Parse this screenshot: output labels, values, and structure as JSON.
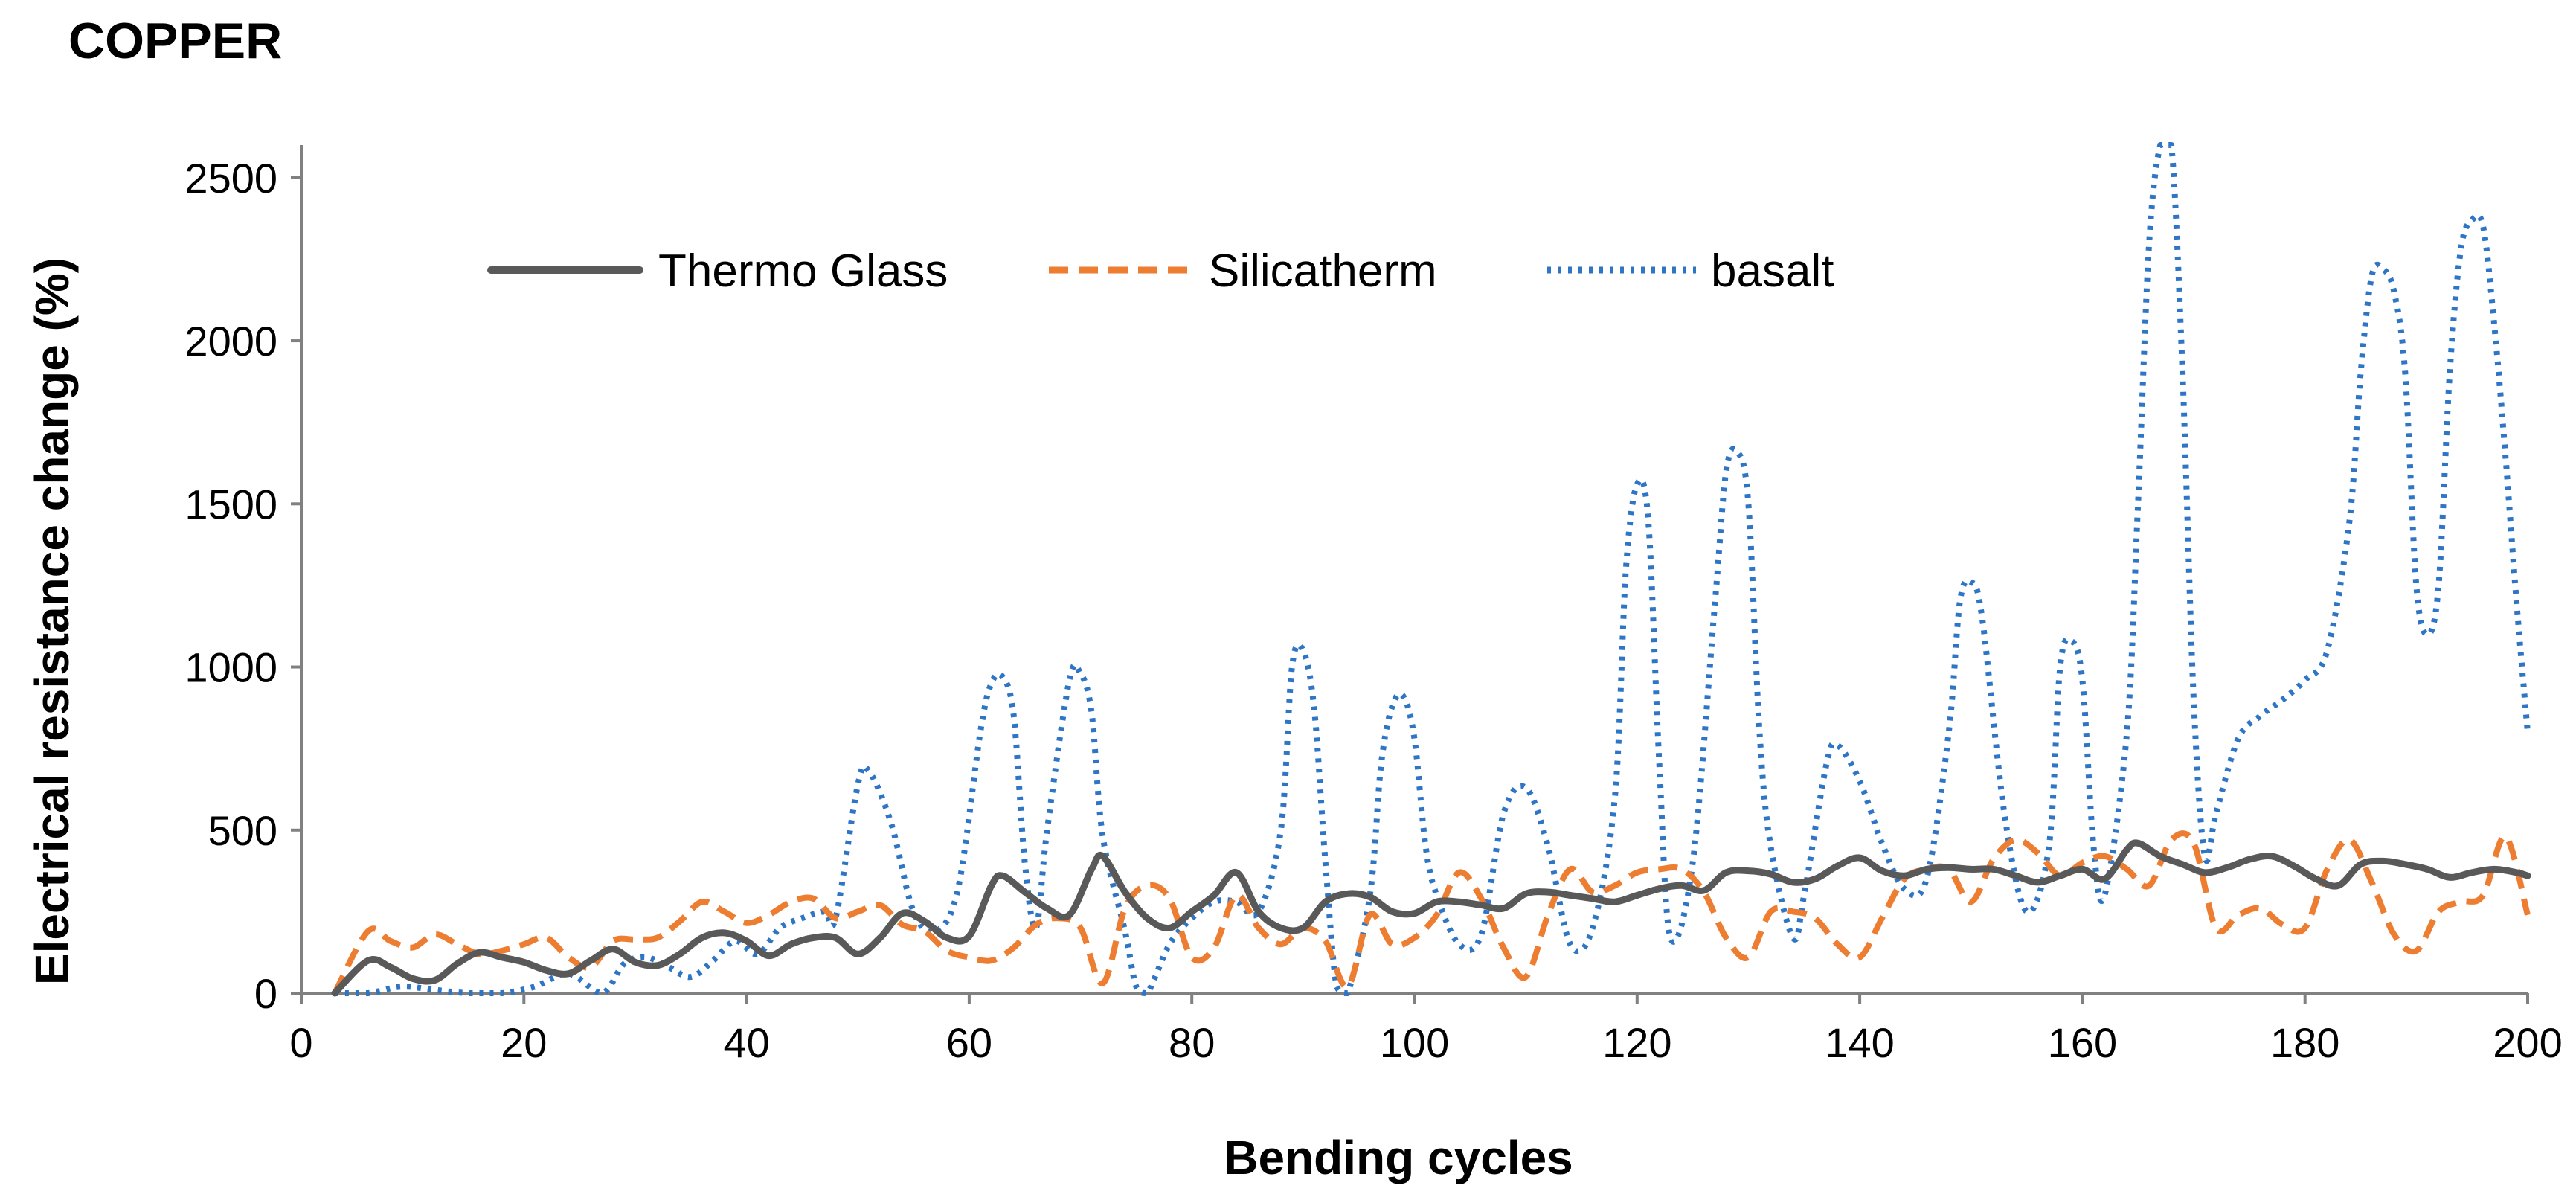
{
  "chart_data": {
    "type": "line",
    "title": "COPPER",
    "xlabel": "Bending cycles",
    "ylabel": "Electrical resistance change  (%)",
    "xlim": [
      0,
      200
    ],
    "ylim": [
      0,
      2600
    ],
    "xticks": [
      0,
      20,
      40,
      60,
      80,
      100,
      120,
      140,
      160,
      180,
      200
    ],
    "yticks": [
      0,
      500,
      1000,
      1500,
      2000,
      2500
    ],
    "grid": false,
    "legend_position": "top-center",
    "series": [
      {
        "name": "Thermo Glass",
        "color": "#595959",
        "style": "solid",
        "points": [
          [
            3,
            0
          ],
          [
            6,
            100
          ],
          [
            8,
            80
          ],
          [
            10,
            45
          ],
          [
            12,
            40
          ],
          [
            14,
            90
          ],
          [
            16,
            125
          ],
          [
            18,
            110
          ],
          [
            20,
            95
          ],
          [
            22,
            70
          ],
          [
            24,
            60
          ],
          [
            26,
            100
          ],
          [
            28,
            135
          ],
          [
            30,
            95
          ],
          [
            32,
            85
          ],
          [
            34,
            120
          ],
          [
            36,
            170
          ],
          [
            38,
            185
          ],
          [
            40,
            160
          ],
          [
            42,
            115
          ],
          [
            44,
            150
          ],
          [
            46,
            170
          ],
          [
            48,
            170
          ],
          [
            50,
            120
          ],
          [
            52,
            170
          ],
          [
            54,
            245
          ],
          [
            56,
            220
          ],
          [
            58,
            170
          ],
          [
            60,
            175
          ],
          [
            62,
            330
          ],
          [
            63,
            360
          ],
          [
            65,
            310
          ],
          [
            67,
            260
          ],
          [
            69,
            240
          ],
          [
            71,
            380
          ],
          [
            72,
            420
          ],
          [
            74,
            310
          ],
          [
            76,
            230
          ],
          [
            78,
            200
          ],
          [
            80,
            250
          ],
          [
            82,
            300
          ],
          [
            84,
            370
          ],
          [
            86,
            250
          ],
          [
            88,
            200
          ],
          [
            90,
            200
          ],
          [
            92,
            280
          ],
          [
            94,
            305
          ],
          [
            96,
            295
          ],
          [
            98,
            250
          ],
          [
            100,
            245
          ],
          [
            102,
            280
          ],
          [
            104,
            280
          ],
          [
            106,
            270
          ],
          [
            108,
            260
          ],
          [
            110,
            305
          ],
          [
            112,
            310
          ],
          [
            114,
            300
          ],
          [
            116,
            290
          ],
          [
            118,
            280
          ],
          [
            120,
            300
          ],
          [
            122,
            320
          ],
          [
            124,
            330
          ],
          [
            126,
            315
          ],
          [
            128,
            370
          ],
          [
            130,
            375
          ],
          [
            132,
            365
          ],
          [
            134,
            340
          ],
          [
            136,
            350
          ],
          [
            138,
            390
          ],
          [
            140,
            415
          ],
          [
            142,
            375
          ],
          [
            144,
            360
          ],
          [
            146,
            380
          ],
          [
            148,
            385
          ],
          [
            150,
            380
          ],
          [
            152,
            380
          ],
          [
            154,
            360
          ],
          [
            156,
            340
          ],
          [
            158,
            360
          ],
          [
            160,
            380
          ],
          [
            162,
            350
          ],
          [
            164,
            440
          ],
          [
            165,
            460
          ],
          [
            167,
            420
          ],
          [
            169,
            395
          ],
          [
            171,
            370
          ],
          [
            173,
            385
          ],
          [
            175,
            410
          ],
          [
            177,
            420
          ],
          [
            179,
            390
          ],
          [
            181,
            350
          ],
          [
            183,
            330
          ],
          [
            185,
            395
          ],
          [
            187,
            405
          ],
          [
            189,
            395
          ],
          [
            191,
            380
          ],
          [
            193,
            355
          ],
          [
            195,
            370
          ],
          [
            197,
            380
          ],
          [
            199,
            370
          ],
          [
            200,
            360
          ]
        ]
      },
      {
        "name": "Silicatherm",
        "color": "#ED7D31",
        "style": "dashed",
        "points": [
          [
            3,
            0
          ],
          [
            6,
            190
          ],
          [
            8,
            160
          ],
          [
            10,
            140
          ],
          [
            12,
            180
          ],
          [
            14,
            150
          ],
          [
            16,
            120
          ],
          [
            18,
            130
          ],
          [
            20,
            150
          ],
          [
            22,
            170
          ],
          [
            24,
            110
          ],
          [
            26,
            80
          ],
          [
            28,
            160
          ],
          [
            30,
            165
          ],
          [
            32,
            170
          ],
          [
            34,
            220
          ],
          [
            36,
            280
          ],
          [
            38,
            250
          ],
          [
            40,
            215
          ],
          [
            42,
            240
          ],
          [
            44,
            280
          ],
          [
            46,
            290
          ],
          [
            48,
            230
          ],
          [
            50,
            250
          ],
          [
            52,
            270
          ],
          [
            54,
            210
          ],
          [
            56,
            190
          ],
          [
            58,
            130
          ],
          [
            60,
            110
          ],
          [
            62,
            100
          ],
          [
            64,
            140
          ],
          [
            66,
            210
          ],
          [
            68,
            230
          ],
          [
            70,
            200
          ],
          [
            72,
            30
          ],
          [
            74,
            260
          ],
          [
            76,
            330
          ],
          [
            78,
            290
          ],
          [
            80,
            110
          ],
          [
            82,
            140
          ],
          [
            84,
            300
          ],
          [
            86,
            200
          ],
          [
            88,
            150
          ],
          [
            90,
            200
          ],
          [
            92,
            160
          ],
          [
            94,
            20
          ],
          [
            96,
            240
          ],
          [
            98,
            150
          ],
          [
            100,
            170
          ],
          [
            102,
            240
          ],
          [
            104,
            370
          ],
          [
            106,
            290
          ],
          [
            108,
            140
          ],
          [
            110,
            50
          ],
          [
            112,
            240
          ],
          [
            114,
            380
          ],
          [
            116,
            310
          ],
          [
            118,
            330
          ],
          [
            120,
            370
          ],
          [
            122,
            380
          ],
          [
            124,
            380
          ],
          [
            126,
            310
          ],
          [
            128,
            170
          ],
          [
            130,
            110
          ],
          [
            132,
            250
          ],
          [
            134,
            250
          ],
          [
            136,
            230
          ],
          [
            138,
            150
          ],
          [
            140,
            110
          ],
          [
            142,
            230
          ],
          [
            144,
            350
          ],
          [
            146,
            380
          ],
          [
            148,
            380
          ],
          [
            150,
            280
          ],
          [
            152,
            410
          ],
          [
            154,
            470
          ],
          [
            156,
            430
          ],
          [
            158,
            360
          ],
          [
            160,
            400
          ],
          [
            162,
            420
          ],
          [
            164,
            380
          ],
          [
            166,
            330
          ],
          [
            168,
            470
          ],
          [
            170,
            460
          ],
          [
            172,
            200
          ],
          [
            174,
            240
          ],
          [
            176,
            260
          ],
          [
            178,
            210
          ],
          [
            180,
            200
          ],
          [
            182,
            380
          ],
          [
            184,
            470
          ],
          [
            186,
            340
          ],
          [
            188,
            180
          ],
          [
            190,
            130
          ],
          [
            192,
            250
          ],
          [
            194,
            280
          ],
          [
            196,
            300
          ],
          [
            198,
            480
          ],
          [
            200,
            240
          ]
        ]
      },
      {
        "name": "basalt",
        "color": "#2E75C5",
        "style": "dotted",
        "points": [
          [
            3,
            0
          ],
          [
            6,
            0
          ],
          [
            9,
            20
          ],
          [
            12,
            10
          ],
          [
            15,
            0
          ],
          [
            18,
            0
          ],
          [
            21,
            20
          ],
          [
            24,
            60
          ],
          [
            27,
            0
          ],
          [
            29,
            90
          ],
          [
            31,
            110
          ],
          [
            33,
            80
          ],
          [
            35,
            50
          ],
          [
            37,
            100
          ],
          [
            39,
            160
          ],
          [
            41,
            120
          ],
          [
            43,
            200
          ],
          [
            45,
            230
          ],
          [
            47,
            250
          ],
          [
            48,
            230
          ],
          [
            50,
            640
          ],
          [
            51,
            680
          ],
          [
            53,
            520
          ],
          [
            55,
            250
          ],
          [
            57,
            190
          ],
          [
            59,
            320
          ],
          [
            61,
            800
          ],
          [
            62,
            950
          ],
          [
            63,
            970
          ],
          [
            64,
            850
          ],
          [
            65,
            400
          ],
          [
            66,
            200
          ],
          [
            67,
            500
          ],
          [
            69,
            960
          ],
          [
            70,
            980
          ],
          [
            71,
            860
          ],
          [
            72,
            480
          ],
          [
            74,
            190
          ],
          [
            75,
            20
          ],
          [
            76,
            0
          ],
          [
            78,
            150
          ],
          [
            80,
            230
          ],
          [
            82,
            280
          ],
          [
            84,
            280
          ],
          [
            86,
            250
          ],
          [
            88,
            500
          ],
          [
            89,
            1000
          ],
          [
            90,
            1050
          ],
          [
            91,
            870
          ],
          [
            92,
            400
          ],
          [
            93,
            20
          ],
          [
            94,
            0
          ],
          [
            96,
            300
          ],
          [
            97,
            700
          ],
          [
            98,
            880
          ],
          [
            99,
            910
          ],
          [
            100,
            780
          ],
          [
            101,
            450
          ],
          [
            102,
            300
          ],
          [
            104,
            150
          ],
          [
            106,
            180
          ],
          [
            108,
            550
          ],
          [
            110,
            630
          ],
          [
            112,
            450
          ],
          [
            114,
            150
          ],
          [
            116,
            200
          ],
          [
            118,
            600
          ],
          [
            119,
            1300
          ],
          [
            120,
            1560
          ],
          [
            121,
            1450
          ],
          [
            122,
            700
          ],
          [
            123,
            170
          ],
          [
            125,
            400
          ],
          [
            127,
            1200
          ],
          [
            128,
            1600
          ],
          [
            129,
            1660
          ],
          [
            130,
            1500
          ],
          [
            131,
            800
          ],
          [
            132,
            450
          ],
          [
            134,
            170
          ],
          [
            135,
            300
          ],
          [
            137,
            700
          ],
          [
            138,
            760
          ],
          [
            140,
            650
          ],
          [
            142,
            460
          ],
          [
            144,
            320
          ],
          [
            146,
            350
          ],
          [
            148,
            800
          ],
          [
            149,
            1200
          ],
          [
            150,
            1260
          ],
          [
            151,
            1150
          ],
          [
            153,
            550
          ],
          [
            155,
            250
          ],
          [
            157,
            450
          ],
          [
            158,
            1000
          ],
          [
            159,
            1080
          ],
          [
            160,
            960
          ],
          [
            161,
            450
          ],
          [
            162,
            300
          ],
          [
            164,
            800
          ],
          [
            165,
            1500
          ],
          [
            166,
            2300
          ],
          [
            167,
            2600
          ],
          [
            168,
            2600
          ],
          [
            169,
            1900
          ],
          [
            170,
            900
          ],
          [
            171,
            420
          ],
          [
            172,
            550
          ],
          [
            174,
            780
          ],
          [
            176,
            850
          ],
          [
            178,
            900
          ],
          [
            180,
            960
          ],
          [
            182,
            1050
          ],
          [
            184,
            1450
          ],
          [
            185,
            1900
          ],
          [
            186,
            2200
          ],
          [
            187,
            2220
          ],
          [
            188,
            2150
          ],
          [
            189,
            1900
          ],
          [
            190,
            1250
          ],
          [
            191,
            1100
          ],
          [
            192,
            1250
          ],
          [
            193,
            1900
          ],
          [
            194,
            2280
          ],
          [
            195,
            2370
          ],
          [
            196,
            2350
          ],
          [
            197,
            2050
          ],
          [
            198,
            1650
          ],
          [
            199,
            1200
          ],
          [
            200,
            800
          ]
        ]
      }
    ]
  }
}
